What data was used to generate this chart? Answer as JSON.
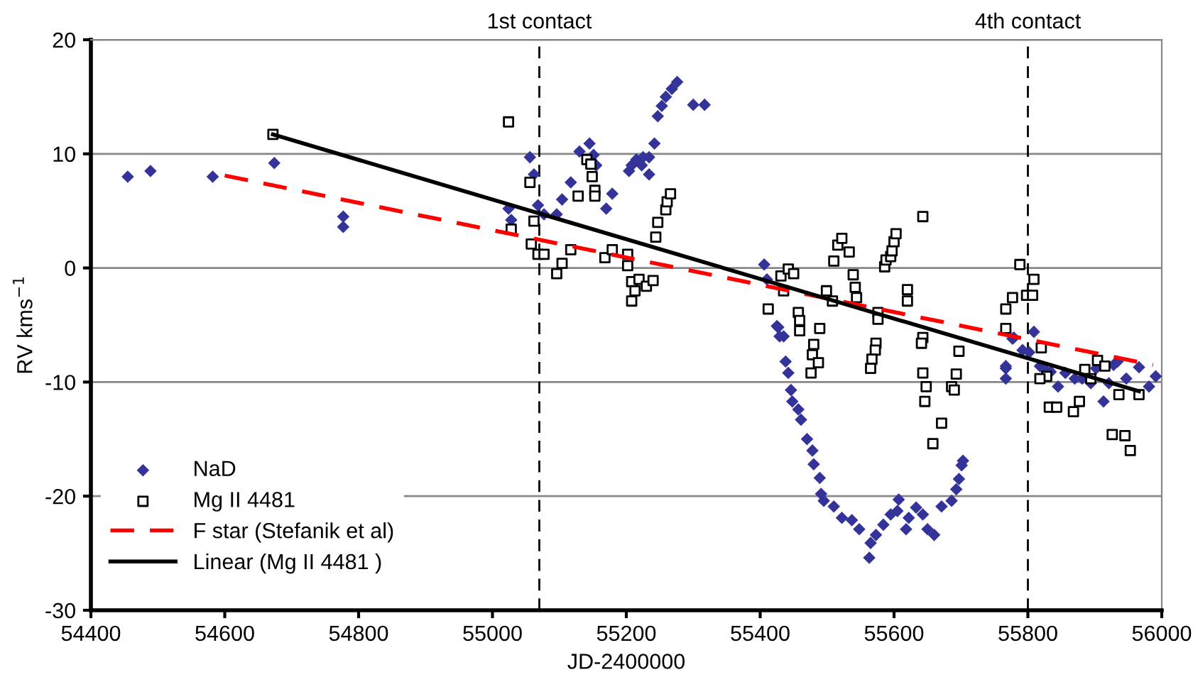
{
  "chart_data": {
    "type": "scatter",
    "xlabel": "JD-2400000",
    "ylabel": "RV kms$^{−1}$",
    "xlim": [
      54400,
      56000
    ],
    "xticks": [
      54400,
      54600,
      54800,
      55000,
      55200,
      55400,
      55600,
      55800,
      56000
    ],
    "ylim": [
      -30,
      20
    ],
    "yticks": [
      -30,
      -20,
      -10,
      0,
      10,
      20
    ],
    "grid": "y",
    "legend": "bottom left",
    "ref_lines": [
      {
        "axis": "x",
        "value": 55070,
        "label": "1st contact",
        "line_style": "dashed",
        "color": "#000000"
      },
      {
        "axis": "x",
        "value": 55800,
        "label": "4th contact",
        "line_style": "dashed",
        "color": "#000000"
      }
    ],
    "series": [
      {
        "name": "NaD",
        "marker": "diamond",
        "color": "#333399",
        "x": [
          54455,
          54489,
          54582,
          54674,
          54777,
          54777,
          55024,
          55028,
          55056,
          55062,
          55068,
          55077,
          55096,
          55104,
          55117,
          55130,
          55145,
          55151,
          55155,
          55170,
          55179,
          55204,
          55208,
          55215,
          55225,
          55234,
          55223,
          55234,
          55242,
          55247,
          55253,
          55259,
          55268,
          55276,
          55300,
          55317,
          55406,
          55410,
          55427,
          55435,
          55425,
          55429,
          55438,
          55442,
          55446,
          55448,
          55457,
          55461,
          55470,
          55478,
          55480,
          55489,
          55491,
          55495,
          55510,
          55522,
          55537,
          55548,
          55563,
          55565,
          55573,
          55584,
          55595,
          55605,
          55607,
          55618,
          55622,
          55633,
          55643,
          55650,
          55660,
          55671,
          55686,
          55693,
          55697,
          55701,
          55703,
          55767,
          55767,
          55777,
          55767,
          55779,
          55792,
          55802,
          55809,
          55818,
          55824,
          55834,
          55845,
          55856,
          55870,
          55881,
          55894,
          55902,
          55913,
          55921,
          55928,
          55934,
          55947,
          55966,
          55981,
          55991
        ],
        "values": [
          8.0,
          8.5,
          8.0,
          9.2,
          4.5,
          3.6,
          5.2,
          4.2,
          9.7,
          8.2,
          5.5,
          4.7,
          4.7,
          6.0,
          7.5,
          10.2,
          10.9,
          9.9,
          9.0,
          5.2,
          6.5,
          8.5,
          9.0,
          9.5,
          9.7,
          9.7,
          9.0,
          8.2,
          10.9,
          13.3,
          14.2,
          15.0,
          15.7,
          16.3,
          14.3,
          14.3,
          0.3,
          -1.0,
          -5.2,
          -6.0,
          -5.1,
          -6.0,
          -8.2,
          -9.2,
          -10.7,
          -11.7,
          -12.4,
          -13.3,
          -15.0,
          -16.0,
          -17.2,
          -18.4,
          -19.8,
          -20.4,
          -20.9,
          -21.9,
          -22.1,
          -22.9,
          -25.4,
          -24.1,
          -23.4,
          -22.5,
          -21.6,
          -21.3,
          -20.3,
          -22.9,
          -21.9,
          -21.0,
          -21.6,
          -22.9,
          -23.4,
          -20.9,
          -20.4,
          -19.4,
          -18.5,
          -17.3,
          -16.9,
          -8.8,
          -9.7,
          -6.2,
          -8.6,
          -6.1,
          -7.2,
          -7.4,
          -5.6,
          -8.6,
          -8.8,
          -9.1,
          -10.4,
          -9.2,
          -9.7,
          -9.7,
          -10.1,
          -8.8,
          -11.7,
          -10.1,
          -8.5,
          -8.2,
          -9.7,
          -8.7,
          -10.4,
          -9.5
        ]
      },
      {
        "name": "Mg II 4481",
        "marker": "square",
        "color": "#000000",
        "x": [
          54672,
          55024,
          55056,
          55062,
          55028,
          55058,
          55068,
          55077,
          55096,
          55104,
          55117,
          55128,
          55141,
          55147,
          55149,
          55153,
          55153,
          55168,
          55179,
          55202,
          55202,
          55208,
          55213,
          55208,
          55219,
          55230,
          55240,
          55244,
          55247,
          55259,
          55261,
          55266,
          55412,
          55431,
          55435,
          55442,
          55450,
          55457,
          55459,
          55459,
          55489,
          55499,
          55508,
          55510,
          55516,
          55522,
          55533,
          55539,
          55542,
          55544,
          55480,
          55478,
          55487,
          55476,
          55576,
          55576,
          55573,
          55572,
          55567,
          55565,
          55586,
          55588,
          55595,
          55597,
          55600,
          55603,
          55643,
          55620,
          55620,
          55643,
          55641,
          55643,
          55648,
          55646,
          55671,
          55658,
          55697,
          55693,
          55686,
          55690,
          55767,
          55777,
          55767,
          55788,
          55809,
          55798,
          55807,
          55820,
          55828,
          55818,
          55832,
          55843,
          55868,
          55877,
          55885,
          55894,
          55904,
          55915,
          55936,
          55966,
          55926,
          55945,
          55953
        ],
        "values": [
          11.7,
          12.8,
          7.5,
          4.1,
          3.4,
          2.1,
          1.2,
          1.2,
          -0.5,
          0.4,
          1.6,
          6.3,
          9.5,
          9.1,
          8.0,
          6.8,
          6.3,
          0.9,
          1.6,
          1.2,
          0.2,
          -1.2,
          -2.0,
          -2.9,
          -1.0,
          -1.6,
          -1.1,
          2.7,
          4.0,
          5.1,
          5.8,
          6.5,
          -3.6,
          -0.7,
          -2.0,
          -0.1,
          -0.5,
          -3.9,
          -4.6,
          -5.5,
          -5.3,
          -2.0,
          -2.9,
          0.6,
          2.0,
          2.6,
          1.4,
          -0.6,
          -1.7,
          -2.6,
          -6.7,
          -7.6,
          -8.3,
          -9.2,
          -3.9,
          -4.5,
          -6.6,
          -7.2,
          -8.0,
          -8.8,
          0.1,
          0.7,
          1.0,
          1.5,
          2.3,
          3.0,
          4.5,
          -1.9,
          -2.9,
          -6.1,
          -6.6,
          -9.2,
          -10.4,
          -11.7,
          -13.6,
          -15.4,
          -7.3,
          -9.3,
          -10.4,
          -10.7,
          -3.6,
          -2.6,
          -5.3,
          0.3,
          -1.0,
          -2.4,
          -2.4,
          -7.0,
          -9.5,
          -9.7,
          -12.2,
          -12.2,
          -12.6,
          -11.7,
          -8.9,
          -9.7,
          -8.1,
          -8.6,
          -11.1,
          -11.1,
          -14.6,
          -14.7,
          -16.0
        ]
      },
      {
        "name": "F star (Stefanik et al)",
        "type": "line",
        "line_style": "dashed",
        "marker": "none",
        "color": "#ff0000",
        "x": [
          54600,
          55987
        ],
        "values": [
          8.1,
          -8.5
        ]
      },
      {
        "name": "Linear (Mg II 4481 )",
        "type": "line",
        "line_style": "solid",
        "marker": "none",
        "color": "#000000",
        "x": [
          54672,
          55966
        ],
        "values": [
          11.7,
          -10.8
        ]
      }
    ]
  }
}
